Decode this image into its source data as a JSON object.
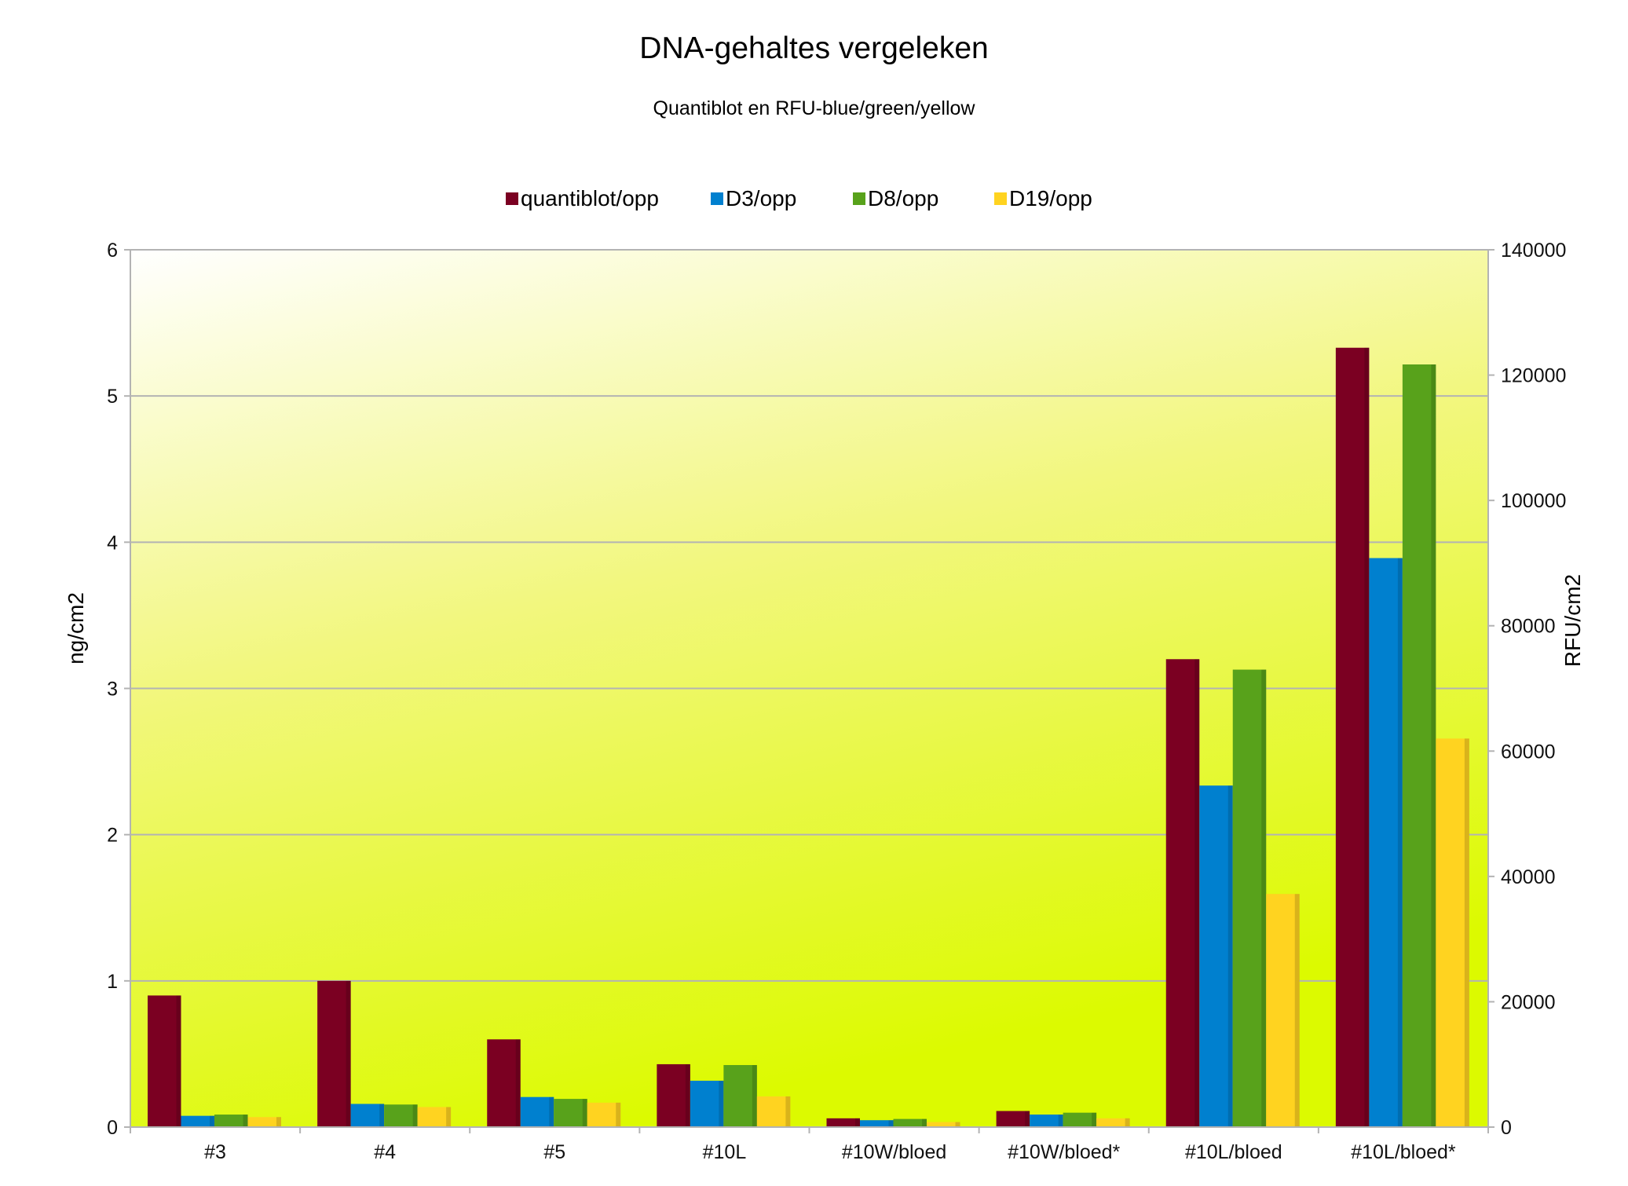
{
  "chart_data": {
    "type": "bar",
    "title": "DNA-gehaltes vergeleken",
    "subtitle": "Quantiblot en RFU-blue/green/yellow",
    "ylabel": "ng/cm2",
    "y2label": "RFU/cm2",
    "ylim": [
      0,
      6
    ],
    "y2lim": [
      0,
      140000
    ],
    "yticks": [
      0,
      1,
      2,
      3,
      4,
      5,
      6
    ],
    "y2ticks": [
      0,
      20000,
      40000,
      60000,
      80000,
      100000,
      120000,
      140000
    ],
    "legend_position": "top-center",
    "grid": true,
    "background": "gradient white to yellow",
    "categories": [
      "#3",
      "#4",
      "#5",
      "#10L",
      "#10W/bloed",
      "#10W/bloed*",
      "#10L/bloed",
      "#10L/bloed*"
    ],
    "series": [
      {
        "name": "quantiblot/opp",
        "axis": "left",
        "color": "#7B0022",
        "values": [
          0.9,
          1.0,
          0.6,
          0.43,
          0.06,
          0.11,
          3.2,
          5.33
        ]
      },
      {
        "name": "D3/opp",
        "axis": "right",
        "color": "#0080CF",
        "values": [
          1800,
          3700,
          4800,
          7400,
          1100,
          2000,
          54500,
          90800
        ]
      },
      {
        "name": "D8/opp",
        "axis": "right",
        "color": "#58A21B",
        "values": [
          2000,
          3600,
          4500,
          9900,
          1300,
          2300,
          73000,
          121700
        ]
      },
      {
        "name": "D19/opp",
        "axis": "right",
        "color": "#FFD320",
        "values": [
          1600,
          3200,
          3900,
          4900,
          800,
          1400,
          37200,
          62000
        ]
      }
    ]
  }
}
